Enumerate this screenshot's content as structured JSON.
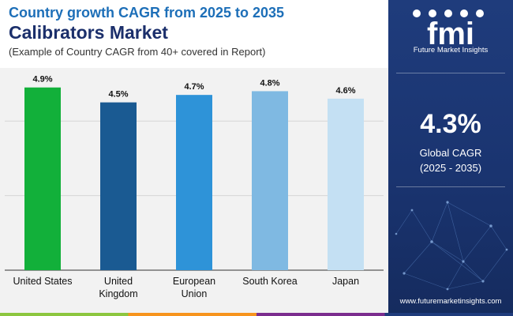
{
  "header": {
    "title": "Country growth CAGR from 2025 to 2035",
    "subtitle": "Calibrators Market",
    "note": "(Example of Country CAGR from 40+ covered in Report)"
  },
  "sidebar": {
    "logo_text": "fmi",
    "brand": "Future Market Insights",
    "kpi_value": "4.3%",
    "kpi_label": "Global CAGR",
    "kpi_period": "(2025 - 2035)",
    "website": "www.futuremarketinsights.com"
  },
  "colors": {
    "title": "#1d6fb8",
    "subtitle": "#1b2f6b",
    "sidebar": "#1f3c7c",
    "plot_bg": "#f2f2f2",
    "bars": [
      "#12b03a",
      "#1a5a92",
      "#2e93d8",
      "#7fb9e2",
      "#c4e0f3"
    ],
    "bottom_strip": [
      "#8cc63f",
      "#f7941d",
      "#7b2d8e",
      "#1f3c7c"
    ]
  },
  "chart_data": {
    "type": "bar",
    "categories": [
      [
        "United States"
      ],
      [
        "United",
        "Kingdom"
      ],
      [
        "European",
        "Union"
      ],
      [
        "South Korea"
      ],
      [
        "Japan"
      ]
    ],
    "values": [
      4.9,
      4.5,
      4.7,
      4.8,
      4.6
    ],
    "value_labels": [
      "4.9%",
      "4.5%",
      "4.7%",
      "4.8%",
      "4.6%"
    ],
    "ylim": [
      0,
      5.0
    ],
    "gridlines": [
      2,
      4
    ],
    "grid": true,
    "y_axis_visible": false,
    "title": "",
    "xlabel": "",
    "ylabel": ""
  }
}
